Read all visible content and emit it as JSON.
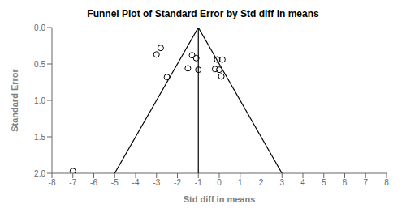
{
  "chart_data": {
    "type": "scatter",
    "title": "Funnel Plot of Standard Error by Std diff in means",
    "xlabel": "Std diff in means",
    "ylabel": "Standard Error",
    "xlim": [
      -8,
      8
    ],
    "ylim": [
      2.0,
      0.0
    ],
    "xticks": [
      -8,
      -7,
      -6,
      -5,
      -4,
      -3,
      -2,
      -1,
      0,
      1,
      2,
      3,
      4,
      5,
      6,
      7,
      8
    ],
    "yticks": [
      {
        "value": 0.0,
        "label": "0.0"
      },
      0.5,
      {
        "value": 1.0,
        "label": "1.0"
      },
      1.5,
      {
        "value": 2.0,
        "label": "2.0"
      }
    ],
    "grid": false,
    "series": [
      {
        "type": "line",
        "color": "#000000",
        "x": [
          -1.0,
          -5.0
        ],
        "y": [
          0.0,
          2.0
        ]
      },
      {
        "type": "line",
        "color": "#000000",
        "x": [
          -1.0,
          3.0
        ],
        "y": [
          0.0,
          2.0
        ]
      },
      {
        "type": "line",
        "color": "#000000",
        "x": [
          -1.0,
          -1.0
        ],
        "y": [
          0.0,
          2.0
        ]
      },
      {
        "type": "scatter",
        "color": "#000000",
        "marker": "open circle",
        "x": [
          -7.0,
          -3.0,
          -2.8,
          -2.5,
          -1.5,
          -1.3,
          -1.1,
          -1.0,
          -0.2,
          -0.1,
          0.0,
          0.1,
          0.15
        ],
        "y": [
          1.97,
          0.37,
          0.28,
          0.68,
          0.56,
          0.38,
          0.42,
          0.58,
          0.57,
          0.44,
          0.58,
          0.67,
          0.44
        ]
      }
    ]
  }
}
